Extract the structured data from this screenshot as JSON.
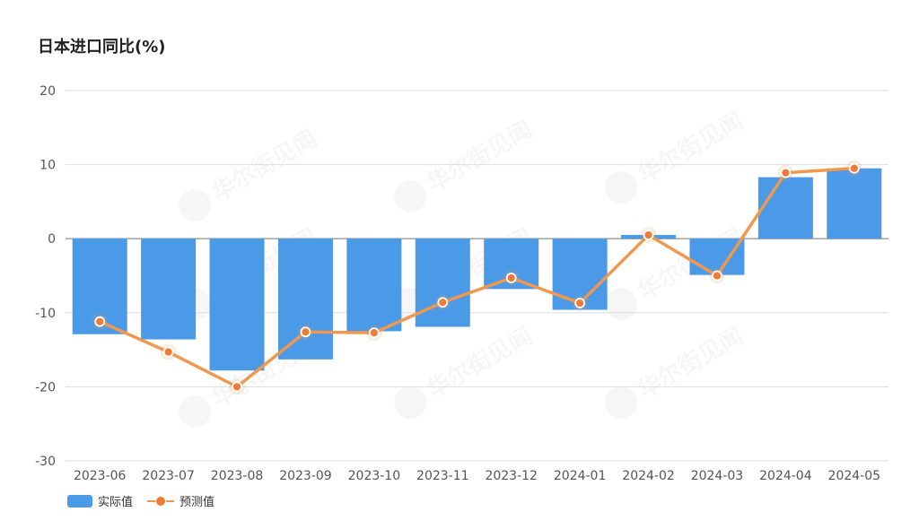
{
  "chart_data": {
    "type": "bar",
    "title": "日本进口同比(%)",
    "categories": [
      "2023-06",
      "2023-07",
      "2023-08",
      "2023-09",
      "2023-10",
      "2023-11",
      "2023-12",
      "2024-01",
      "2024-02",
      "2024-03",
      "2024-04",
      "2024-05"
    ],
    "series": [
      {
        "name": "实际值",
        "type": "bar",
        "color": "#4a9ae8",
        "values": [
          -12.9,
          -13.6,
          -17.8,
          -16.3,
          -12.5,
          -11.9,
          -6.8,
          -9.6,
          0.5,
          -4.9,
          8.3,
          9.5
        ]
      },
      {
        "name": "预测值",
        "type": "line",
        "color": "#f0984d",
        "marker_color": "#f07a35",
        "values": [
          -11.2,
          -15.3,
          -20.0,
          -12.6,
          -12.7,
          -8.6,
          -5.3,
          -8.7,
          0.5,
          -5.0,
          8.9,
          9.5
        ]
      }
    ],
    "ylim": [
      -30,
      20
    ],
    "yticks": [
      20,
      10,
      0,
      -10,
      -20,
      -30
    ],
    "grid": true,
    "legend_position": "bottom-left",
    "watermark": "华尔街见闻"
  }
}
